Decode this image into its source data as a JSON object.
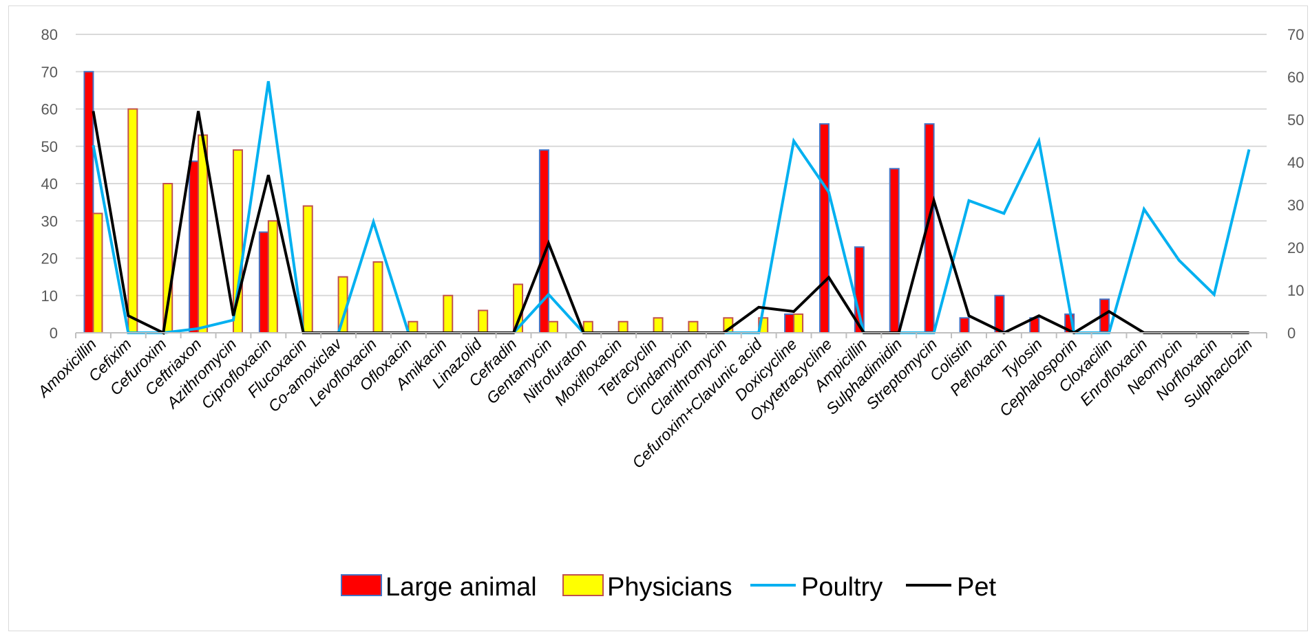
{
  "chart_data": {
    "type": "bar+line",
    "title": "",
    "xlabel": "",
    "ylabel": "",
    "categories": [
      "Amoxicillin",
      "Cefixim",
      "Cefuroxim",
      "Ceftriaxon",
      "Azithromycin",
      "Ciprofloxacin",
      "Flucoxacin",
      "Co-amoxiclav",
      "Levofloxacin",
      "Ofloxacin",
      "Amikacin",
      "Linazolid",
      "Cefradin",
      "Gentamycin",
      "Nitrofuraton",
      "Moxifloxacin",
      "Tetracyclin",
      "Clindamycin",
      "Clarithromycin",
      "Cefuroxim+Clavunic acid",
      "Doxicycline",
      "Oxytetracycline",
      "Ampicillin",
      "Sulphadimidin",
      "Streptomycin",
      "Colistin",
      "Pefloxacin",
      "Tylosin",
      "Cephalosporin",
      "Cloxacilin",
      "Enrofloxacin",
      "Neomycin",
      "Norfloxacin",
      "Sulphaclozin"
    ],
    "y_left": {
      "min": 0,
      "max": 80,
      "ticks": [
        "0",
        "10",
        "20",
        "30",
        "40",
        "50",
        "60",
        "70",
        "80"
      ]
    },
    "y_right": {
      "min": 0,
      "max": 70,
      "ticks": [
        "0",
        "10",
        "20",
        "30",
        "40",
        "50",
        "60",
        "70"
      ]
    },
    "grid": true,
    "legend_position": "bottom",
    "series": [
      {
        "name": "Large animal",
        "type": "bar",
        "axis": "left",
        "color": "#ff0000",
        "border": "#4472c4",
        "values": [
          70,
          0,
          0,
          46,
          0,
          27,
          0,
          0,
          0,
          0,
          0,
          0,
          0,
          49,
          0,
          0,
          0,
          0,
          0,
          0,
          5,
          56,
          23,
          44,
          56,
          4,
          10,
          4,
          5,
          9,
          0,
          0,
          0,
          0
        ]
      },
      {
        "name": "Physicians",
        "type": "bar",
        "axis": "left",
        "color": "#ffff00",
        "border": "#c0504d",
        "values": [
          32,
          60,
          40,
          53,
          49,
          30,
          34,
          15,
          19,
          3,
          10,
          6,
          13,
          3,
          3,
          3,
          4,
          3,
          4,
          4,
          5,
          0,
          0,
          0,
          0,
          0,
          0,
          0,
          0,
          0,
          0,
          0,
          0,
          0
        ]
      },
      {
        "name": "Poultry",
        "type": "line",
        "axis": "right",
        "color": "#00b0f0",
        "values": [
          44,
          0,
          0,
          1,
          3,
          59,
          0,
          0,
          26,
          0,
          0,
          0,
          0,
          9,
          0,
          0,
          0,
          0,
          0,
          0,
          45,
          33,
          0,
          0,
          0,
          31,
          28,
          45,
          0,
          0,
          29,
          17,
          9,
          43
        ]
      },
      {
        "name": "Pet",
        "type": "line",
        "axis": "right",
        "color": "#000000",
        "values": [
          52,
          4,
          0,
          52,
          4,
          37,
          0,
          0,
          0,
          0,
          0,
          0,
          0,
          21,
          0,
          0,
          0,
          0,
          0,
          6,
          5,
          13,
          0,
          0,
          31,
          4,
          0,
          4,
          0,
          5,
          0,
          0,
          0,
          0
        ]
      }
    ]
  }
}
